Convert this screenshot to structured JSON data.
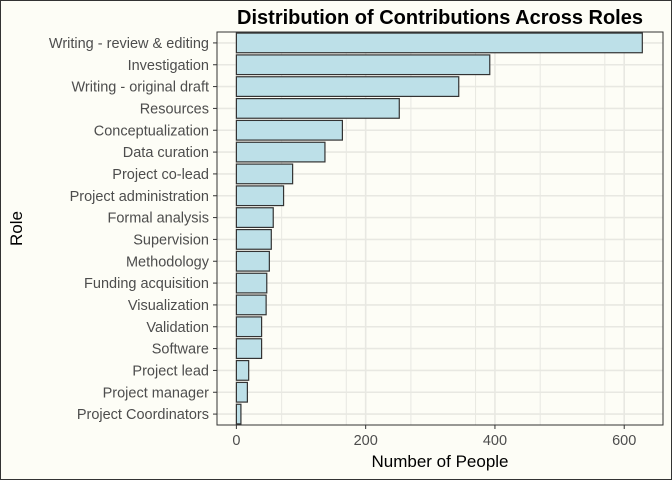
{
  "chart_data": {
    "type": "bar",
    "orientation": "horizontal",
    "title": "Distribution of Contributions Across Roles",
    "xlabel": "Number of People",
    "ylabel": "Role",
    "xlim": [
      -30,
      660
    ],
    "xticks": [
      0,
      200,
      400,
      600
    ],
    "grid": true,
    "categories": [
      "Writing - review & editing",
      "Investigation",
      "Writing - original draft",
      "Resources",
      "Conceptualization",
      "Data curation",
      "Project co-lead",
      "Project administration",
      "Formal analysis",
      "Supervision",
      "Methodology",
      "Funding acquisition",
      "Visualization",
      "Validation",
      "Software",
      "Project lead",
      "Project manager",
      "Project Coordinators"
    ],
    "values": [
      628,
      392,
      344,
      252,
      164,
      137,
      87,
      73,
      57,
      54,
      51,
      47,
      46,
      39,
      39,
      19,
      17,
      7
    ],
    "colors": {
      "bar_fill": "#bde0e8",
      "bar_stroke": "#333333",
      "background": "#fdfdf6",
      "grid": "#e8e8e2"
    }
  }
}
